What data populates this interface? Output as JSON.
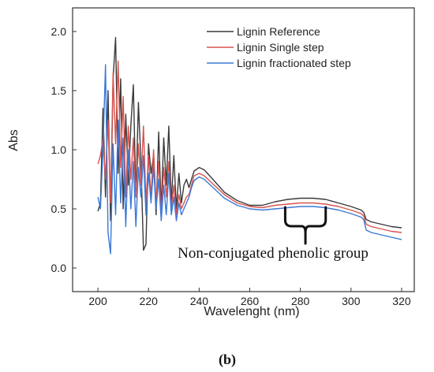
{
  "panel_label": "(b)",
  "chart_data": {
    "type": "line",
    "title": "",
    "xlabel": "Wavelenght (nm)",
    "ylabel": "Abs",
    "xlim": [
      190,
      325
    ],
    "ylim": [
      -0.2,
      2.2
    ],
    "xticks": [
      200,
      220,
      240,
      260,
      280,
      300,
      320
    ],
    "yticks": [
      0.0,
      0.5,
      1.0,
      1.5,
      2.0
    ],
    "ytick_labels": [
      "0.0",
      "0.5",
      "1.0",
      "1.5",
      "2.0"
    ],
    "grid": false,
    "legend_position": "top-right",
    "series": [
      {
        "name": "Lignin Reference",
        "color": "#3a3a3a",
        "points": [
          [
            200,
            0.48
          ],
          [
            201,
            0.55
          ],
          [
            202,
            1.35
          ],
          [
            203,
            0.6
          ],
          [
            204,
            1.5
          ],
          [
            205,
            0.4
          ],
          [
            206,
            1.6
          ],
          [
            207,
            1.95
          ],
          [
            208,
            0.8
          ],
          [
            209,
            1.6
          ],
          [
            210,
            0.5
          ],
          [
            211,
            1.3
          ],
          [
            212,
            0.7
          ],
          [
            213,
            1.2
          ],
          [
            214,
            1.55
          ],
          [
            215,
            0.6
          ],
          [
            216,
            1.4
          ],
          [
            217,
            0.9
          ],
          [
            218,
            0.15
          ],
          [
            219,
            0.2
          ],
          [
            220,
            1.05
          ],
          [
            221,
            0.8
          ],
          [
            222,
            0.95
          ],
          [
            223,
            0.45
          ],
          [
            224,
            1.15
          ],
          [
            225,
            0.5
          ],
          [
            226,
            1.1
          ],
          [
            227,
            0.7
          ],
          [
            228,
            1.2
          ],
          [
            229,
            0.55
          ],
          [
            230,
            0.95
          ],
          [
            231,
            0.5
          ],
          [
            232,
            0.8
          ],
          [
            233,
            0.55
          ],
          [
            234,
            0.7
          ],
          [
            235,
            0.75
          ],
          [
            236,
            0.68
          ],
          [
            237,
            0.75
          ],
          [
            238,
            0.82
          ],
          [
            240,
            0.85
          ],
          [
            242,
            0.83
          ],
          [
            245,
            0.76
          ],
          [
            250,
            0.64
          ],
          [
            255,
            0.57
          ],
          [
            260,
            0.53
          ],
          [
            265,
            0.53
          ],
          [
            270,
            0.56
          ],
          [
            275,
            0.58
          ],
          [
            280,
            0.59
          ],
          [
            285,
            0.59
          ],
          [
            290,
            0.58
          ],
          [
            295,
            0.55
          ],
          [
            300,
            0.52
          ],
          [
            304,
            0.49
          ],
          [
            305,
            0.47
          ],
          [
            306,
            0.41
          ],
          [
            308,
            0.39
          ],
          [
            312,
            0.37
          ],
          [
            316,
            0.35
          ],
          [
            320,
            0.34
          ]
        ]
      },
      {
        "name": "Lignin Single step",
        "color": "#d9534f",
        "points": [
          [
            200,
            0.88
          ],
          [
            201,
            0.95
          ],
          [
            202,
            1.1
          ],
          [
            203,
            0.75
          ],
          [
            204,
            1.25
          ],
          [
            205,
            0.55
          ],
          [
            206,
            1.65
          ],
          [
            207,
            1.05
          ],
          [
            208,
            1.75
          ],
          [
            209,
            0.85
          ],
          [
            210,
            1.45
          ],
          [
            211,
            0.6
          ],
          [
            212,
            1.2
          ],
          [
            213,
            0.75
          ],
          [
            214,
            1.1
          ],
          [
            215,
            0.6
          ],
          [
            216,
            1.05
          ],
          [
            217,
            0.7
          ],
          [
            218,
            1.2
          ],
          [
            219,
            0.55
          ],
          [
            220,
            0.95
          ],
          [
            221,
            0.6
          ],
          [
            222,
            1.0
          ],
          [
            223,
            0.55
          ],
          [
            224,
            0.9
          ],
          [
            225,
            0.45
          ],
          [
            226,
            0.85
          ],
          [
            227,
            0.6
          ],
          [
            228,
            0.9
          ],
          [
            229,
            0.5
          ],
          [
            230,
            0.7
          ],
          [
            231,
            0.45
          ],
          [
            232,
            0.62
          ],
          [
            233,
            0.5
          ],
          [
            234,
            0.55
          ],
          [
            235,
            0.6
          ],
          [
            236,
            0.62
          ],
          [
            237,
            0.7
          ],
          [
            238,
            0.78
          ],
          [
            240,
            0.8
          ],
          [
            242,
            0.78
          ],
          [
            245,
            0.72
          ],
          [
            250,
            0.62
          ],
          [
            255,
            0.55
          ],
          [
            260,
            0.52
          ],
          [
            265,
            0.51
          ],
          [
            270,
            0.53
          ],
          [
            275,
            0.54
          ],
          [
            280,
            0.55
          ],
          [
            285,
            0.55
          ],
          [
            290,
            0.54
          ],
          [
            295,
            0.52
          ],
          [
            300,
            0.49
          ],
          [
            304,
            0.46
          ],
          [
            305,
            0.44
          ],
          [
            306,
            0.37
          ],
          [
            308,
            0.35
          ],
          [
            312,
            0.33
          ],
          [
            316,
            0.31
          ],
          [
            320,
            0.3
          ]
        ]
      },
      {
        "name": "Lignin fractionated step",
        "color": "#3c78d8",
        "points": [
          [
            200,
            0.6
          ],
          [
            201,
            0.5
          ],
          [
            202,
            1.0
          ],
          [
            203,
            1.72
          ],
          [
            204,
            0.3
          ],
          [
            205,
            0.12
          ],
          [
            206,
            1.05
          ],
          [
            207,
            0.45
          ],
          [
            208,
            1.25
          ],
          [
            209,
            0.55
          ],
          [
            210,
            1.1
          ],
          [
            211,
            0.35
          ],
          [
            212,
            1.0
          ],
          [
            213,
            0.5
          ],
          [
            214,
            0.9
          ],
          [
            215,
            0.35
          ],
          [
            216,
            0.85
          ],
          [
            217,
            0.6
          ],
          [
            218,
            0.95
          ],
          [
            219,
            0.45
          ],
          [
            220,
            0.8
          ],
          [
            221,
            0.55
          ],
          [
            222,
            0.85
          ],
          [
            223,
            0.5
          ],
          [
            224,
            0.75
          ],
          [
            225,
            0.4
          ],
          [
            226,
            0.7
          ],
          [
            227,
            0.45
          ],
          [
            228,
            0.8
          ],
          [
            229,
            0.45
          ],
          [
            230,
            0.6
          ],
          [
            231,
            0.4
          ],
          [
            232,
            0.55
          ],
          [
            233,
            0.45
          ],
          [
            234,
            0.5
          ],
          [
            235,
            0.55
          ],
          [
            236,
            0.6
          ],
          [
            237,
            0.68
          ],
          [
            238,
            0.74
          ],
          [
            240,
            0.77
          ],
          [
            242,
            0.75
          ],
          [
            245,
            0.69
          ],
          [
            250,
            0.59
          ],
          [
            255,
            0.53
          ],
          [
            260,
            0.5
          ],
          [
            265,
            0.49
          ],
          [
            270,
            0.5
          ],
          [
            275,
            0.51
          ],
          [
            280,
            0.52
          ],
          [
            285,
            0.52
          ],
          [
            290,
            0.51
          ],
          [
            295,
            0.49
          ],
          [
            300,
            0.46
          ],
          [
            304,
            0.43
          ],
          [
            305,
            0.41
          ],
          [
            306,
            0.32
          ],
          [
            308,
            0.3
          ],
          [
            312,
            0.28
          ],
          [
            316,
            0.26
          ],
          [
            320,
            0.24
          ]
        ]
      }
    ],
    "annotation": {
      "text": "Non-conjugated phenolic group",
      "bracket_x_range": [
        274,
        290
      ],
      "bracket_y": 0.5
    }
  }
}
